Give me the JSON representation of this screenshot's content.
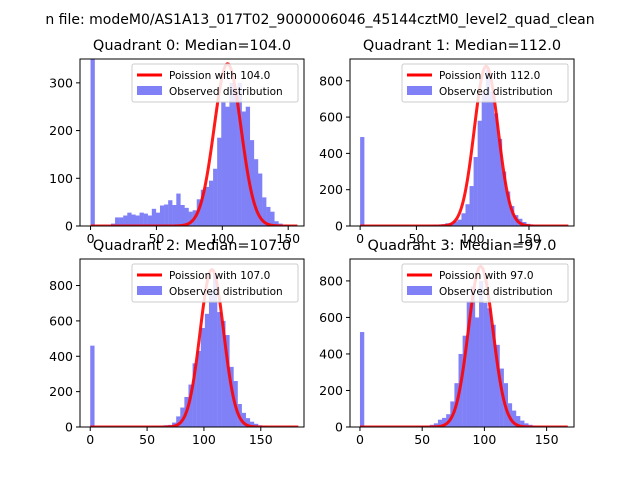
{
  "figure": {
    "suptitle": "n file: modeM0/AS1A13_017T02_9000006046_45144cztM0_level2_quad_clean"
  },
  "colors": {
    "hist": "#8080f7",
    "curve": "#ff0000",
    "frame": "#000000"
  },
  "chart_data": [
    {
      "type": "bar",
      "title": "Quadrant 0: Median=104.0",
      "xlim": [
        -8,
        162
      ],
      "ylim": [
        0,
        350
      ],
      "xticks": [
        0,
        50,
        100,
        150
      ],
      "yticks": [
        0,
        100,
        200,
        300
      ],
      "bin_width": 3.1,
      "poisson_lambda": 104,
      "poisson_peak": 340,
      "legend": {
        "placement": "top-right",
        "line_label": "Poission with 104.0",
        "hist_label": "Observed distribution"
      },
      "bins": [
        [
          0,
          350
        ],
        [
          3.1,
          0
        ],
        [
          6.2,
          0
        ],
        [
          9.3,
          0
        ],
        [
          12.4,
          0
        ],
        [
          15.5,
          5
        ],
        [
          18.6,
          18
        ],
        [
          21.7,
          18
        ],
        [
          24.8,
          22
        ],
        [
          27.9,
          28
        ],
        [
          31,
          24
        ],
        [
          34.1,
          22
        ],
        [
          37.2,
          28
        ],
        [
          40.3,
          26
        ],
        [
          43.4,
          22
        ],
        [
          46.5,
          36
        ],
        [
          49.6,
          28
        ],
        [
          52.7,
          43
        ],
        [
          55.8,
          45
        ],
        [
          58.9,
          54
        ],
        [
          62,
          44
        ],
        [
          65.1,
          68
        ],
        [
          68.2,
          44
        ],
        [
          71.3,
          38
        ],
        [
          74.4,
          30
        ],
        [
          77.5,
          33
        ],
        [
          80.6,
          56
        ],
        [
          83.7,
          76
        ],
        [
          86.8,
          82
        ],
        [
          89.9,
          95
        ],
        [
          93,
          120
        ],
        [
          96.1,
          185
        ],
        [
          99.2,
          260
        ],
        [
          102.3,
          250
        ],
        [
          105.4,
          300
        ],
        [
          108.5,
          280
        ],
        [
          111.6,
          300
        ],
        [
          114.7,
          240
        ],
        [
          117.8,
          250
        ],
        [
          120.9,
          180
        ],
        [
          124,
          140
        ],
        [
          127.1,
          110
        ],
        [
          130.2,
          60
        ],
        [
          133.3,
          40
        ],
        [
          136.4,
          30
        ],
        [
          139.5,
          10
        ],
        [
          142.6,
          5
        ],
        [
          145.7,
          3
        ],
        [
          148.8,
          2
        ],
        [
          151.9,
          1
        ]
      ]
    },
    {
      "type": "bar",
      "title": "Quadrant 1: Median=112.0",
      "xlim": [
        -9,
        190
      ],
      "ylim": [
        0,
        920
      ],
      "xticks": [
        0,
        50,
        100,
        150
      ],
      "yticks": [
        0,
        200,
        400,
        600,
        800
      ],
      "bin_width": 3.6,
      "poisson_lambda": 112,
      "poisson_peak": 880,
      "legend": {
        "placement": "top-right",
        "line_label": "Poission with 112.0",
        "hist_label": "Observed distribution"
      },
      "bins": [
        [
          0,
          490
        ],
        [
          61.2,
          5
        ],
        [
          64.8,
          8
        ],
        [
          68.4,
          8
        ],
        [
          72,
          10
        ],
        [
          75.6,
          15
        ],
        [
          79.2,
          15
        ],
        [
          82.8,
          25
        ],
        [
          86.4,
          35
        ],
        [
          90,
          70
        ],
        [
          93.6,
          120
        ],
        [
          97.2,
          220
        ],
        [
          100.8,
          380
        ],
        [
          104.4,
          580
        ],
        [
          108,
          730
        ],
        [
          111.6,
          860
        ],
        [
          115.2,
          740
        ],
        [
          118.8,
          620
        ],
        [
          122.4,
          480
        ],
        [
          126,
          300
        ],
        [
          129.6,
          190
        ],
        [
          133.2,
          110
        ],
        [
          136.8,
          60
        ],
        [
          140.4,
          40
        ],
        [
          144,
          22
        ],
        [
          147.6,
          12
        ],
        [
          151.2,
          8
        ],
        [
          154.8,
          5
        ],
        [
          158.4,
          3
        ],
        [
          162,
          2
        ]
      ]
    },
    {
      "type": "bar",
      "title": "Quadrant 2: Median=107.0",
      "xlim": [
        -9,
        188
      ],
      "ylim": [
        0,
        950
      ],
      "xticks": [
        0,
        50,
        100,
        150
      ],
      "yticks": [
        0,
        200,
        400,
        600,
        800
      ],
      "bin_width": 3.6,
      "poisson_lambda": 107,
      "poisson_peak": 890,
      "legend": {
        "placement": "top-right",
        "line_label": "Poission with 107.0",
        "hist_label": "Observed distribution"
      },
      "bins": [
        [
          0,
          460
        ],
        [
          54,
          5
        ],
        [
          57.6,
          5
        ],
        [
          61.2,
          8
        ],
        [
          64.8,
          10
        ],
        [
          68.4,
          12
        ],
        [
          72,
          25
        ],
        [
          75.6,
          60
        ],
        [
          79.2,
          110
        ],
        [
          82.8,
          170
        ],
        [
          86.4,
          240
        ],
        [
          90,
          360
        ],
        [
          93.6,
          430
        ],
        [
          97.2,
          560
        ],
        [
          100.8,
          640
        ],
        [
          104.4,
          770
        ],
        [
          108,
          870
        ],
        [
          111.6,
          650
        ],
        [
          115.2,
          600
        ],
        [
          118.8,
          520
        ],
        [
          122.4,
          340
        ],
        [
          126,
          260
        ],
        [
          129.6,
          130
        ],
        [
          133.2,
          80
        ],
        [
          136.8,
          50
        ],
        [
          140.4,
          30
        ],
        [
          144,
          18
        ],
        [
          147.6,
          10
        ],
        [
          151.2,
          6
        ],
        [
          154.8,
          3
        ]
      ]
    },
    {
      "type": "bar",
      "title": "Quadrant 3: Median=97.0",
      "xlim": [
        -8,
        172
      ],
      "ylim": [
        0,
        920
      ],
      "xticks": [
        0,
        50,
        100,
        150
      ],
      "yticks": [
        0,
        200,
        400,
        600,
        800
      ],
      "bin_width": 3.3,
      "poisson_lambda": 97,
      "poisson_peak": 880,
      "legend": {
        "placement": "top-right",
        "line_label": "Poission with 97.0",
        "hist_label": "Observed distribution"
      },
      "bins": [
        [
          0,
          520
        ],
        [
          46.2,
          5
        ],
        [
          49.5,
          6
        ],
        [
          52.8,
          8
        ],
        [
          56.1,
          12
        ],
        [
          59.4,
          20
        ],
        [
          62.7,
          40
        ],
        [
          66,
          50
        ],
        [
          69.3,
          70
        ],
        [
          72.6,
          140
        ],
        [
          75.9,
          240
        ],
        [
          79.2,
          400
        ],
        [
          82.5,
          500
        ],
        [
          85.8,
          690
        ],
        [
          89.1,
          770
        ],
        [
          92.4,
          600
        ],
        [
          95.7,
          800
        ],
        [
          99,
          680
        ],
        [
          102.3,
          650
        ],
        [
          105.6,
          560
        ],
        [
          108.9,
          450
        ],
        [
          112.2,
          320
        ],
        [
          115.5,
          240
        ],
        [
          118.8,
          130
        ],
        [
          122.1,
          90
        ],
        [
          125.4,
          60
        ],
        [
          128.7,
          35
        ],
        [
          132,
          20
        ],
        [
          135.3,
          12
        ],
        [
          138.6,
          8
        ],
        [
          141.9,
          5
        ],
        [
          145.2,
          4
        ],
        [
          148.5,
          3
        ],
        [
          151.8,
          2
        ],
        [
          155.1,
          2
        ]
      ]
    }
  ]
}
